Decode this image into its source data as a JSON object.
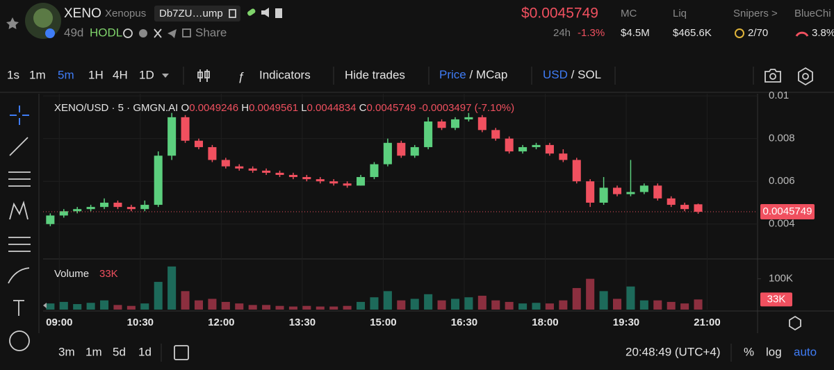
{
  "header": {
    "name": "XENO",
    "ticker": "Xenopus",
    "address": "Db7ZU…ump",
    "age": "49d",
    "tag": "HODL",
    "share": "Share",
    "price": "$0.0045749",
    "change_label": "24h",
    "change": "-1.3%",
    "stats": [
      {
        "label": "MC",
        "value": "$4.5M"
      },
      {
        "label": "Liq",
        "value": "$465.6K"
      },
      {
        "label": "Snipers >",
        "value": "2/70"
      },
      {
        "label": "BlueChi",
        "value": "3.8%"
      }
    ]
  },
  "toolbar": {
    "intervals": [
      "1s",
      "1m",
      "5m",
      "1H",
      "4H",
      "1D"
    ],
    "indicators": "Indicators",
    "hide_trades": "Hide trades",
    "price_mcap": [
      "Price",
      "/",
      "MCap"
    ],
    "usd_sol": [
      "USD",
      "/",
      "SOL"
    ]
  },
  "chart": {
    "type": "candlestick",
    "legend": {
      "symbol": "XENO/USD · 5 · GMGN.AI",
      "o": "O",
      "h": "H",
      "l": "L",
      "c": "C",
      "change": "-0.0003497 (-7.10%)",
      "volume": "Volume",
      "volume_value": "33K"
    },
    "up_color": "#5ccf7e",
    "down_color": "#f0505f",
    "volume_up_color": "#1d6a5a",
    "volume_down_color": "#8c2f3f",
    "x": [
      530,
      545,
      560,
      575,
      590,
      605,
      620,
      635,
      650,
      665,
      680,
      695,
      710,
      725,
      740,
      755,
      770,
      785,
      800,
      815,
      830,
      845,
      860,
      875,
      890,
      905,
      920,
      935,
      950,
      965,
      980,
      995,
      1010,
      1025,
      1040,
      1055,
      1070,
      1085,
      1100,
      1115,
      1130,
      1145,
      1160,
      1175,
      1190,
      1205,
      1220,
      1235,
      1250
    ],
    "candles": [
      [
        0.004,
        0.0045,
        0.0039,
        0.0044
      ],
      [
        0.0044,
        0.0047,
        0.0043,
        0.0046
      ],
      [
        0.0046,
        0.0048,
        0.0045,
        0.0047
      ],
      [
        0.0047,
        0.0049,
        0.0046,
        0.0048
      ],
      [
        0.0048,
        0.0052,
        0.0047,
        0.005
      ],
      [
        0.005,
        0.0051,
        0.0047,
        0.0048
      ],
      [
        0.0048,
        0.0049,
        0.0046,
        0.0047
      ],
      [
        0.0047,
        0.0051,
        0.0046,
        0.0049
      ],
      [
        0.0049,
        0.0074,
        0.0048,
        0.0072
      ],
      [
        0.0072,
        0.0092,
        0.007,
        0.009
      ],
      [
        0.009,
        0.0091,
        0.0078,
        0.0079
      ],
      [
        0.0079,
        0.008,
        0.0075,
        0.0076
      ],
      [
        0.0076,
        0.0077,
        0.0069,
        0.007
      ],
      [
        0.007,
        0.0071,
        0.0066,
        0.0067
      ],
      [
        0.0067,
        0.0068,
        0.0065,
        0.0066
      ],
      [
        0.0066,
        0.0067,
        0.0064,
        0.0065
      ],
      [
        0.0065,
        0.0066,
        0.0063,
        0.0064
      ],
      [
        0.0064,
        0.0065,
        0.0062,
        0.0063
      ],
      [
        0.0063,
        0.0064,
        0.0061,
        0.0062
      ],
      [
        0.0062,
        0.0063,
        0.006,
        0.0061
      ],
      [
        0.0061,
        0.0062,
        0.0059,
        0.006
      ],
      [
        0.006,
        0.0061,
        0.0058,
        0.0059
      ],
      [
        0.0059,
        0.006,
        0.0057,
        0.0058
      ],
      [
        0.0058,
        0.0063,
        0.0058,
        0.0062
      ],
      [
        0.0062,
        0.0069,
        0.0061,
        0.0068
      ],
      [
        0.0068,
        0.008,
        0.0067,
        0.0078
      ],
      [
        0.0078,
        0.0079,
        0.0071,
        0.0072
      ],
      [
        0.0072,
        0.0077,
        0.0071,
        0.0076
      ],
      [
        0.0076,
        0.009,
        0.0075,
        0.0088
      ],
      [
        0.0088,
        0.0089,
        0.0084,
        0.0085
      ],
      [
        0.0085,
        0.009,
        0.0084,
        0.0089
      ],
      [
        0.0089,
        0.0092,
        0.0088,
        0.009
      ],
      [
        0.009,
        0.0091,
        0.0083,
        0.0084
      ],
      [
        0.0084,
        0.0085,
        0.0079,
        0.008
      ],
      [
        0.008,
        0.0081,
        0.0073,
        0.0074
      ],
      [
        0.0074,
        0.0077,
        0.0073,
        0.0076
      ],
      [
        0.0076,
        0.0078,
        0.0075,
        0.0077
      ],
      [
        0.0077,
        0.0078,
        0.0072,
        0.0073
      ],
      [
        0.0073,
        0.0075,
        0.0069,
        0.007
      ],
      [
        0.007,
        0.0071,
        0.0059,
        0.006
      ],
      [
        0.006,
        0.0061,
        0.0048,
        0.005
      ],
      [
        0.005,
        0.0062,
        0.0049,
        0.0057
      ],
      [
        0.0057,
        0.0058,
        0.0053,
        0.0054
      ],
      [
        0.0054,
        0.007,
        0.0053,
        0.0055
      ],
      [
        0.0055,
        0.0059,
        0.0054,
        0.0058
      ],
      [
        0.0058,
        0.0059,
        0.0051,
        0.0052
      ],
      [
        0.0052,
        0.0053,
        0.0048,
        0.0049
      ],
      [
        0.0049,
        0.005,
        0.0046,
        0.0047
      ],
      [
        0.0049246,
        0.0049561,
        0.0044834,
        0.0045749
      ]
    ],
    "volumes": [
      20000,
      25000,
      18000,
      22000,
      30000,
      15000,
      12000,
      20000,
      90000,
      140000,
      60000,
      30000,
      35000,
      25000,
      20000,
      15000,
      15000,
      12000,
      10000,
      12000,
      10000,
      10000,
      12000,
      25000,
      40000,
      60000,
      30000,
      35000,
      50000,
      30000,
      35000,
      40000,
      45000,
      30000,
      25000,
      20000,
      22000,
      20000,
      30000,
      70000,
      100000,
      60000,
      35000,
      75000,
      30000,
      30000,
      25000,
      20000,
      33000
    ],
    "xlim": [
      522,
      1316
    ],
    "xticks": [
      {
        "value": 540,
        "label": "09:00"
      },
      {
        "value": 630,
        "label": "10:30"
      },
      {
        "value": 720,
        "label": "12:00"
      },
      {
        "value": 810,
        "label": "13:30"
      },
      {
        "value": 900,
        "label": "15:00"
      },
      {
        "value": 990,
        "label": "16:30"
      },
      {
        "value": 1080,
        "label": "18:00"
      },
      {
        "value": 1170,
        "label": "19:30"
      },
      {
        "value": 1260,
        "label": "21:00"
      }
    ],
    "ylim": [
      0.0024,
      0.0101
    ],
    "yticks": [
      0.004,
      0.006,
      0.008,
      0.01
    ],
    "vlim": [
      0,
      160000
    ],
    "vticks": [
      {
        "value": 100000,
        "label": "100K"
      }
    ],
    "grid": true
  },
  "footer": {
    "ranges": [
      "3m",
      "1m",
      "5d",
      "1d"
    ],
    "clock": "20:48:49 (UTC+4)",
    "percent": "%",
    "log": "log",
    "auto": "auto"
  }
}
